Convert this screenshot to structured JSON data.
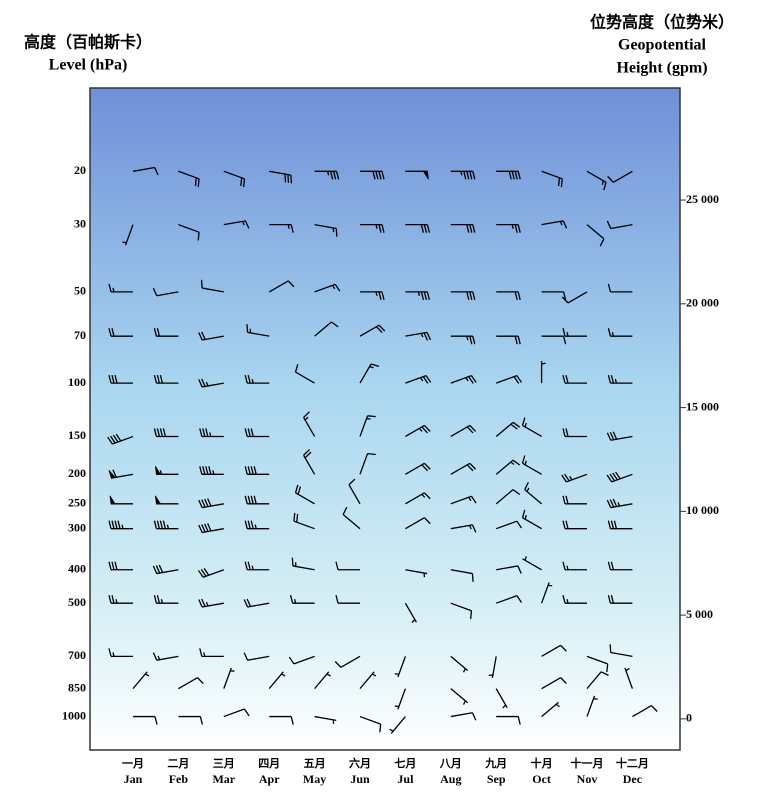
{
  "chart_data": {
    "type": "wind_barb",
    "y_label_zh": "高度（百帕斯卡）",
    "y_label": "Level (hPa)",
    "y2_label_zh": "位势高度（位势米）",
    "y2_label_1": "Geopotential",
    "y2_label_2": "Height (gpm)",
    "categories_zh": [
      "一月",
      "二月",
      "三月",
      "四月",
      "五月",
      "六月",
      "七月",
      "八月",
      "九月",
      "十月",
      "十一月",
      "十二月"
    ],
    "categories": [
      "Jan",
      "Feb",
      "Mar",
      "Apr",
      "May",
      "Jun",
      "Jul",
      "Aug",
      "Sep",
      "Oct",
      "Nov",
      "Dec"
    ],
    "yticks": [
      20,
      30,
      50,
      70,
      100,
      150,
      200,
      250,
      300,
      400,
      500,
      700,
      850,
      1000
    ],
    "y2lim": [
      -1500,
      30400
    ],
    "y2ticks": [
      0,
      {
        "value": 5000,
        "label": "5 000"
      },
      {
        "value": 10000,
        "label": "10 000"
      },
      {
        "value": 15000,
        "label": "15 000"
      },
      {
        "value": 20000,
        "label": "20 000"
      },
      {
        "value": 25000,
        "label": "25 000"
      }
    ],
    "color": "#000000",
    "wind_direction": [
      [
        80,
        110,
        110,
        100,
        90,
        90,
        90,
        90,
        90,
        110,
        120,
        240
      ],
      [
        200,
        110,
        80,
        90,
        100,
        90,
        90,
        90,
        90,
        80,
        130,
        260
      ],
      [
        270,
        260,
        280,
        60,
        70,
        90,
        90,
        90,
        90,
        90,
        240,
        270
      ],
      [
        270,
        270,
        260,
        280,
        50,
        60,
        80,
        90,
        90,
        90,
        270,
        270
      ],
      [
        270,
        270,
        260,
        270,
        300,
        30,
        70,
        70,
        70,
        0,
        270,
        270
      ],
      [
        250,
        270,
        270,
        270,
        330,
        20,
        60,
        60,
        50,
        300,
        270,
        260
      ],
      [
        260,
        270,
        270,
        270,
        330,
        20,
        60,
        60,
        50,
        300,
        250,
        250
      ],
      [
        270,
        270,
        260,
        270,
        300,
        330,
        60,
        70,
        50,
        310,
        270,
        260
      ],
      [
        270,
        270,
        260,
        270,
        290,
        310,
        60,
        80,
        70,
        300,
        270,
        270
      ],
      [
        270,
        260,
        250,
        270,
        280,
        270,
        100,
        100,
        80,
        300,
        270,
        270
      ],
      [
        270,
        270,
        260,
        260,
        270,
        270,
        150,
        110,
        70,
        20,
        270,
        270
      ],
      [
        270,
        260,
        270,
        260,
        250,
        240,
        200,
        130,
        190,
        60,
        110,
        280
      ],
      [
        40,
        60,
        20,
        40,
        40,
        40,
        200,
        130,
        150,
        60,
        40,
        340
      ],
      [
        90,
        90,
        70,
        90,
        100,
        110,
        220,
        80,
        90,
        50,
        20,
        60
      ]
    ],
    "wind_speed": [
      [
        10,
        20,
        20,
        30,
        35,
        40,
        50,
        45,
        40,
        20,
        15,
        10
      ],
      [
        5,
        10,
        15,
        15,
        15,
        25,
        30,
        30,
        25,
        15,
        10,
        10
      ],
      [
        15,
        10,
        10,
        10,
        15,
        25,
        35,
        30,
        20,
        10,
        10,
        10
      ],
      [
        20,
        20,
        20,
        15,
        10,
        20,
        25,
        25,
        20,
        10,
        15,
        15
      ],
      [
        30,
        30,
        25,
        25,
        10,
        15,
        25,
        25,
        20,
        5,
        20,
        25
      ],
      [
        40,
        40,
        35,
        30,
        15,
        15,
        25,
        20,
        20,
        15,
        20,
        30
      ],
      [
        60,
        55,
        45,
        40,
        20,
        10,
        20,
        20,
        15,
        15,
        25,
        40
      ],
      [
        50,
        50,
        40,
        40,
        20,
        10,
        15,
        15,
        10,
        15,
        20,
        35
      ],
      [
        45,
        45,
        40,
        35,
        20,
        10,
        10,
        15,
        10,
        15,
        20,
        30
      ],
      [
        30,
        30,
        30,
        25,
        15,
        10,
        5,
        10,
        10,
        5,
        15,
        20
      ],
      [
        25,
        25,
        25,
        20,
        15,
        10,
        5,
        10,
        10,
        5,
        15,
        20
      ],
      [
        15,
        15,
        15,
        10,
        10,
        10,
        5,
        5,
        5,
        10,
        10,
        10
      ],
      [
        5,
        10,
        5,
        5,
        5,
        5,
        5,
        5,
        5,
        10,
        10,
        5
      ],
      [
        10,
        10,
        10,
        10,
        5,
        10,
        5,
        10,
        10,
        5,
        5,
        10
      ]
    ]
  }
}
